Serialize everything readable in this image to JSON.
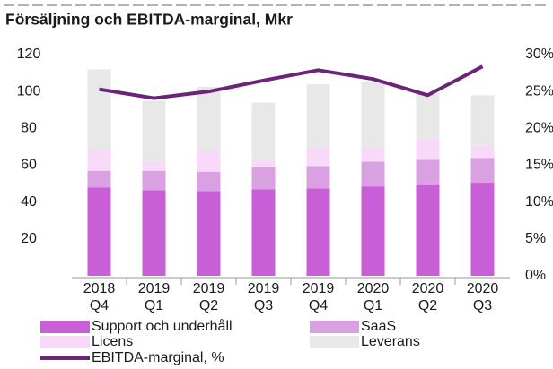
{
  "chart_data": {
    "type": "stacked-bar-line",
    "title": "Försäljning och EBITDA-marginal, Mkr",
    "categories": [
      [
        "2018",
        "Q4"
      ],
      [
        "2019",
        "Q1"
      ],
      [
        "2019",
        "Q2"
      ],
      [
        "2019",
        "Q3"
      ],
      [
        "2019",
        "Q4"
      ],
      [
        "2020",
        "Q1"
      ],
      [
        "2020",
        "Q2"
      ],
      [
        "2020",
        "Q3"
      ]
    ],
    "series": [
      {
        "name": "Support och underhåll",
        "color": "#c95fd6",
        "values": [
          48,
          46.5,
          46,
          47,
          47.5,
          48.5,
          49.5,
          50.5
        ]
      },
      {
        "name": "SaaS",
        "color": "#d9a1e2",
        "values": [
          9,
          10.5,
          10.5,
          12,
          12,
          13.5,
          13.5,
          13.5
        ]
      },
      {
        "name": "Licens",
        "color": "#f9d9f9",
        "values": [
          11,
          5,
          12,
          4,
          10,
          7.5,
          11,
          6.5
        ]
      },
      {
        "name": "Leverans",
        "color": "#e8e8e8",
        "values": [
          44,
          33,
          34,
          31,
          34.5,
          35.5,
          25,
          27.5
        ]
      },
      {
        "name": "EBITDA-marginal, %",
        "color": "#6b2478",
        "axis": "y2",
        "values": [
          25.3,
          24.1,
          25,
          26.5,
          27.9,
          26.7,
          24.5,
          28.4
        ]
      }
    ],
    "ylim": [
      0,
      120
    ],
    "yticks": [
      20,
      40,
      60,
      80,
      100,
      120
    ],
    "y2lim": [
      0,
      30
    ],
    "y2ticks": [
      {
        "value": 0,
        "label": "0%"
      },
      {
        "value": 5,
        "label": "5%"
      },
      {
        "value": 10,
        "label": "10%"
      },
      {
        "value": 15,
        "label": "15%"
      },
      {
        "value": 20,
        "label": "20%"
      },
      {
        "value": 25,
        "label": "25%"
      },
      {
        "value": 30,
        "label": "30%"
      }
    ],
    "legend": "bottom"
  }
}
